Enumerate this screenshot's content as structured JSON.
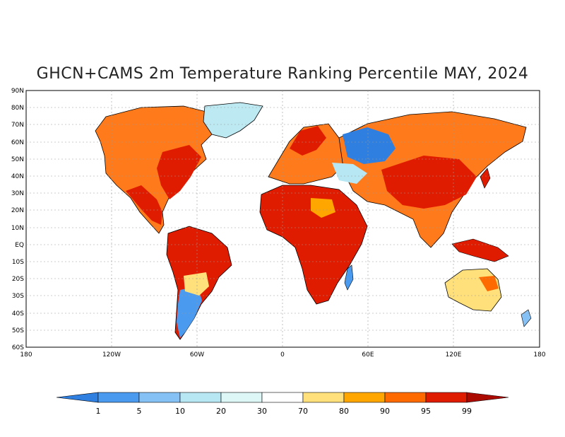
{
  "title": "GHCN+CAMS 2m Temperature Ranking Percentile MAY, 2024",
  "map": {
    "lat_labels": [
      "90N",
      "80N",
      "70N",
      "60N",
      "50N",
      "40N",
      "30N",
      "20N",
      "10N",
      "EQ",
      "10S",
      "20S",
      "30S",
      "40S",
      "50S",
      "60S"
    ],
    "lon_labels": [
      "180",
      "120W",
      "60W",
      "0",
      "60E",
      "120E",
      "180"
    ]
  },
  "colorbar": {
    "labels": [
      "1",
      "5",
      "10",
      "20",
      "30",
      "70",
      "80",
      "90",
      "95",
      "99"
    ],
    "colors": [
      "#2f7fe0",
      "#4a9af0",
      "#86c1f5",
      "#b6e7f2",
      "#ddf7f7",
      "#ffffff",
      "#ffe07a",
      "#ffa600",
      "#ff6a00",
      "#e01c00",
      "#aa0a00"
    ]
  }
}
